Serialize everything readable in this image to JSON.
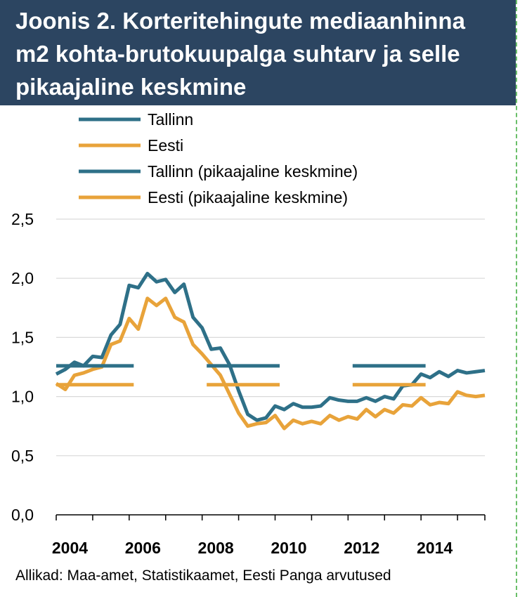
{
  "title": {
    "line1": "Joonis 2. Korteritehingute mediaanhinna",
    "line2": "m2 kohta-brutokuupalga suhtarv ja selle",
    "line3": "pikaajaline keskmine"
  },
  "source": "Allikad: Maa-amet, Statistikaamet, Eesti Panga arvutused",
  "colors": {
    "tallinn": "#2e7088",
    "eesti": "#e8a33a",
    "title_bg": "#2c4561"
  },
  "chart_data": {
    "type": "line",
    "title": "Joonis 2. Korteritehingute mediaanhinna m2 kohta-brutokuupalga suhtarv ja selle pikaajaline keskmine",
    "xlabel": "",
    "ylabel": "",
    "ylim": [
      0,
      2.5
    ],
    "xlim": [
      2004.0,
      2015.75
    ],
    "y_ticks": [
      "0,0",
      "0,5",
      "1,0",
      "1,5",
      "2,0",
      "2,5"
    ],
    "y_tick_values": [
      0,
      0.5,
      1.0,
      1.5,
      2.0,
      2.5
    ],
    "x_ticks": [
      "2004",
      "2006",
      "2008",
      "2010",
      "2012",
      "2014"
    ],
    "x_tick_values": [
      2004.375,
      2006.375,
      2008.375,
      2010.375,
      2012.375,
      2014.375
    ],
    "grid": "horizontal",
    "legend_position": "top",
    "x": [
      2004.0,
      2004.25,
      2004.5,
      2004.75,
      2005.0,
      2005.25,
      2005.5,
      2005.75,
      2006.0,
      2006.25,
      2006.5,
      2006.75,
      2007.0,
      2007.25,
      2007.5,
      2007.75,
      2008.0,
      2008.25,
      2008.5,
      2008.75,
      2009.0,
      2009.25,
      2009.5,
      2009.75,
      2010.0,
      2010.25,
      2010.5,
      2010.75,
      2011.0,
      2011.25,
      2011.5,
      2011.75,
      2012.0,
      2012.25,
      2012.5,
      2012.75,
      2013.0,
      2013.25,
      2013.5,
      2013.75,
      2014.0,
      2014.25,
      2014.5,
      2014.75,
      2015.0,
      2015.25,
      2015.5,
      2015.75
    ],
    "series": [
      {
        "name": "Tallinn",
        "color": "#2e7088",
        "values": [
          1.19,
          1.23,
          1.29,
          1.26,
          1.34,
          1.33,
          1.52,
          1.61,
          1.94,
          1.92,
          2.04,
          1.97,
          1.99,
          1.88,
          1.95,
          1.67,
          1.58,
          1.4,
          1.41,
          1.27,
          1.05,
          0.85,
          0.8,
          0.82,
          0.92,
          0.89,
          0.94,
          0.91,
          0.91,
          0.92,
          0.99,
          0.97,
          0.96,
          0.96,
          0.99,
          0.96,
          1.0,
          0.98,
          1.09,
          1.1,
          1.19,
          1.16,
          1.21,
          1.17,
          1.22,
          1.2,
          1.21,
          1.22
        ]
      },
      {
        "name": "Eesti",
        "color": "#e8a33a",
        "values": [
          1.11,
          1.06,
          1.18,
          1.2,
          1.23,
          1.25,
          1.44,
          1.47,
          1.66,
          1.57,
          1.83,
          1.77,
          1.83,
          1.67,
          1.63,
          1.44,
          1.36,
          1.27,
          1.18,
          1.02,
          0.86,
          0.75,
          0.77,
          0.78,
          0.84,
          0.73,
          0.8,
          0.77,
          0.79,
          0.77,
          0.84,
          0.8,
          0.83,
          0.81,
          0.89,
          0.83,
          0.89,
          0.86,
          0.93,
          0.92,
          0.99,
          0.93,
          0.95,
          0.94,
          1.04,
          1.01,
          1.0,
          1.01
        ]
      },
      {
        "name": "Tallinn (pikaajaline keskmine)",
        "color": "#2e7088",
        "segments": [
          {
            "x": [
              2004.0,
              2006.125
            ],
            "value": 1.26
          },
          {
            "x": [
              2008.125,
              2010.125
            ],
            "value": 1.26
          },
          {
            "x": [
              2012.125,
              2014.125
            ],
            "value": 1.26
          }
        ]
      },
      {
        "name": "Eesti (pikaajaline keskmine)",
        "color": "#e8a33a",
        "segments": [
          {
            "x": [
              2004.0,
              2006.125
            ],
            "value": 1.1
          },
          {
            "x": [
              2008.125,
              2010.125
            ],
            "value": 1.1
          },
          {
            "x": [
              2012.125,
              2014.125
            ],
            "value": 1.1
          }
        ]
      }
    ]
  }
}
